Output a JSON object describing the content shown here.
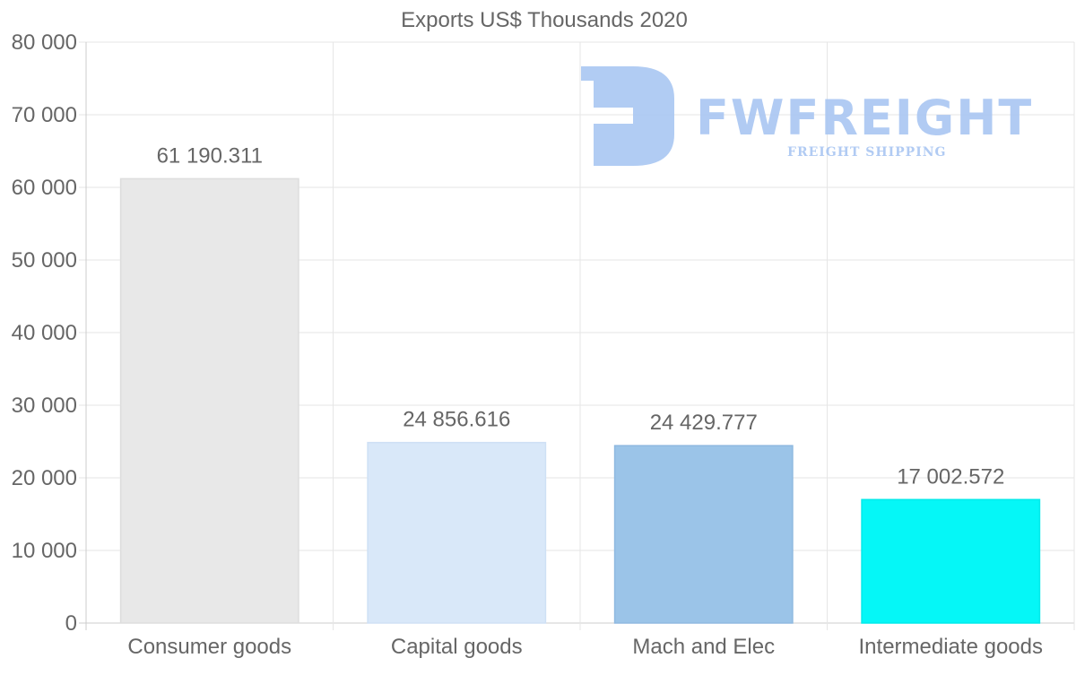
{
  "chart_data": {
    "type": "bar",
    "title": "Exports US$ Thousands 2020",
    "categories": [
      "Consumer goods",
      "Capital goods",
      "Mach and Elec",
      "Intermediate goods"
    ],
    "values": [
      61190.311,
      24856.616,
      24429.777,
      17002.572
    ],
    "value_labels": [
      "61 190.311",
      "24 856.616",
      "24 429.777",
      "17 002.572"
    ],
    "bar_colors": [
      "#e8e8e8",
      "#d9e8f9",
      "#9bc4e8",
      "#05f7f7"
    ],
    "bar_border_colors": [
      "#dddddd",
      "#cfe0f5",
      "#8fb9e0",
      "#00eaea"
    ],
    "ylim": [
      0,
      80000
    ],
    "yticks": [
      0,
      10000,
      20000,
      30000,
      40000,
      50000,
      60000,
      70000,
      80000
    ],
    "ytick_labels": [
      "0",
      "10 000",
      "20 000",
      "30 000",
      "40 000",
      "50 000",
      "60 000",
      "70 000",
      "80 000"
    ],
    "xlabel": "",
    "ylabel": "",
    "grid": true,
    "legend": "none"
  },
  "watermark": {
    "brand": "FWFREIGHT",
    "tagline": "FREIGHT SHIPPING",
    "color": "#a9c6f2"
  }
}
